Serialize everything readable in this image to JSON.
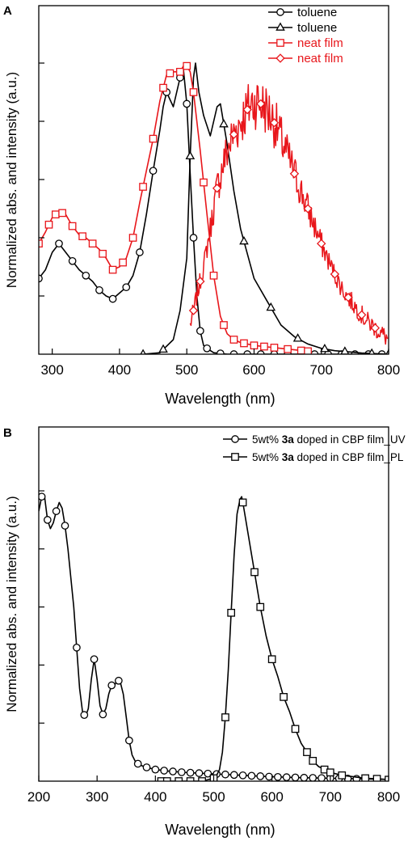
{
  "chart_data": [
    {
      "panel_label": "A",
      "type": "line",
      "xlabel": "Wavelength (nm)",
      "ylabel": "Normalized abs. and intensity (a.u.)",
      "xlim": [
        280,
        800
      ],
      "ylim": [
        0,
        1
      ],
      "xticks": [
        300,
        400,
        500,
        600,
        700,
        800
      ],
      "y_tick_values": [
        0.2,
        0.4,
        0.6,
        0.8,
        1.0
      ],
      "y_tick_labels_shown": false,
      "legend_position": "top-right",
      "series": [
        {
          "name": "toluene",
          "kind": "absorption",
          "color": "#000000",
          "marker": "circle",
          "points": [
            [
              280,
              0.26
            ],
            [
              290,
              0.29
            ],
            [
              300,
              0.35
            ],
            [
              310,
              0.38
            ],
            [
              320,
              0.35
            ],
            [
              330,
              0.32
            ],
            [
              340,
              0.29
            ],
            [
              350,
              0.27
            ],
            [
              360,
              0.25
            ],
            [
              370,
              0.22
            ],
            [
              380,
              0.2
            ],
            [
              390,
              0.19
            ],
            [
              400,
              0.21
            ],
            [
              410,
              0.23
            ],
            [
              420,
              0.27
            ],
            [
              430,
              0.35
            ],
            [
              440,
              0.48
            ],
            [
              450,
              0.63
            ],
            [
              460,
              0.77
            ],
            [
              465,
              0.85
            ],
            [
              470,
              0.9
            ],
            [
              480,
              0.85
            ],
            [
              490,
              0.95
            ],
            [
              495,
              0.98
            ],
            [
              500,
              0.86
            ],
            [
              505,
              0.62
            ],
            [
              510,
              0.4
            ],
            [
              515,
              0.2
            ],
            [
              520,
              0.08
            ],
            [
              525,
              0.03
            ],
            [
              530,
              0.02
            ],
            [
              540,
              0.005
            ],
            [
              560,
              0.0
            ],
            [
              800,
              0.0
            ]
          ],
          "marker_x": [
            280,
            310,
            330,
            350,
            370,
            390,
            410,
            430,
            450,
            470,
            490,
            500,
            510,
            520,
            530,
            550,
            570,
            590,
            610,
            630,
            650,
            670,
            690,
            710,
            730,
            750,
            770,
            790
          ]
        },
        {
          "name": "toluene",
          "kind": "emission",
          "color": "#000000",
          "marker": "triangle",
          "points": [
            [
              435,
              0.0
            ],
            [
              460,
              0.005
            ],
            [
              480,
              0.05
            ],
            [
              490,
              0.15
            ],
            [
              500,
              0.33
            ],
            [
              505,
              0.68
            ],
            [
              510,
              0.95
            ],
            [
              513,
              1.0
            ],
            [
              518,
              0.9
            ],
            [
              525,
              0.82
            ],
            [
              535,
              0.75
            ],
            [
              545,
              0.85
            ],
            [
              550,
              0.86
            ],
            [
              560,
              0.72
            ],
            [
              570,
              0.56
            ],
            [
              580,
              0.43
            ],
            [
              600,
              0.26
            ],
            [
              620,
              0.18
            ],
            [
              640,
              0.1
            ],
            [
              660,
              0.06
            ],
            [
              680,
              0.035
            ],
            [
              700,
              0.02
            ],
            [
              720,
              0.012
            ],
            [
              740,
              0.008
            ],
            [
              760,
              0.004
            ],
            [
              780,
              0.002
            ],
            [
              800,
              0.0
            ]
          ],
          "marker_x": [
            435,
            465,
            505,
            555,
            585,
            625,
            665,
            705,
            735,
            775,
            800
          ]
        },
        {
          "name": "neat film",
          "kind": "absorption",
          "color": "#e8161b",
          "marker": "square",
          "points": [
            [
              280,
              0.38
            ],
            [
              290,
              0.42
            ],
            [
              300,
              0.47
            ],
            [
              310,
              0.49
            ],
            [
              320,
              0.48
            ],
            [
              330,
              0.44
            ],
            [
              340,
              0.41
            ],
            [
              350,
              0.4
            ],
            [
              360,
              0.38
            ],
            [
              370,
              0.36
            ],
            [
              380,
              0.33
            ],
            [
              390,
              0.29
            ],
            [
              400,
              0.3
            ],
            [
              410,
              0.33
            ],
            [
              420,
              0.4
            ],
            [
              430,
              0.52
            ],
            [
              440,
              0.63
            ],
            [
              450,
              0.74
            ],
            [
              460,
              0.87
            ],
            [
              470,
              0.96
            ],
            [
              480,
              0.97
            ],
            [
              490,
              0.97
            ],
            [
              495,
              0.99
            ],
            [
              500,
              0.99
            ],
            [
              505,
              0.97
            ],
            [
              510,
              0.9
            ],
            [
              520,
              0.7
            ],
            [
              530,
              0.48
            ],
            [
              540,
              0.27
            ],
            [
              550,
              0.13
            ],
            [
              560,
              0.07
            ],
            [
              570,
              0.05
            ],
            [
              580,
              0.04
            ],
            [
              600,
              0.03
            ],
            [
              620,
              0.025
            ],
            [
              640,
              0.02
            ],
            [
              660,
              0.015
            ],
            [
              680,
              0.01
            ]
          ],
          "marker_x": [
            280,
            295,
            305,
            315,
            330,
            345,
            360,
            375,
            390,
            405,
            420,
            435,
            450,
            465,
            475,
            490,
            500,
            510,
            525,
            540,
            555,
            570,
            585,
            600,
            615,
            630,
            650,
            670,
            680
          ]
        },
        {
          "name": "neat film",
          "kind": "emission",
          "color": "#e8161b",
          "marker": "diamond",
          "noisy": true,
          "points": [
            [
              505,
              0.1
            ],
            [
              515,
              0.2
            ],
            [
              525,
              0.3
            ],
            [
              535,
              0.43
            ],
            [
              545,
              0.57
            ],
            [
              555,
              0.66
            ],
            [
              565,
              0.73
            ],
            [
              575,
              0.78
            ],
            [
              585,
              0.82
            ],
            [
              595,
              0.86
            ],
            [
              605,
              0.87
            ],
            [
              615,
              0.85
            ],
            [
              625,
              0.82
            ],
            [
              635,
              0.77
            ],
            [
              645,
              0.71
            ],
            [
              655,
              0.65
            ],
            [
              665,
              0.59
            ],
            [
              675,
              0.53
            ],
            [
              685,
              0.47
            ],
            [
              695,
              0.41
            ],
            [
              705,
              0.35
            ],
            [
              715,
              0.3
            ],
            [
              725,
              0.25
            ],
            [
              735,
              0.21
            ],
            [
              745,
              0.18
            ],
            [
              755,
              0.15
            ],
            [
              765,
              0.12
            ],
            [
              775,
              0.1
            ],
            [
              785,
              0.08
            ],
            [
              795,
              0.06
            ],
            [
              800,
              0.05
            ]
          ],
          "marker_x": [
            510,
            520,
            545,
            570,
            590,
            610,
            630,
            660,
            680,
            700,
            720,
            740,
            760,
            780
          ]
        }
      ]
    },
    {
      "panel_label": "B",
      "type": "line",
      "xlabel": "Wavelength (nm)",
      "ylabel": "Normalized abs. and intensity (a.u.)",
      "xlim": [
        200,
        800
      ],
      "ylim": [
        0,
        1
      ],
      "xticks": [
        200,
        300,
        400,
        500,
        600,
        700,
        800
      ],
      "y_tick_values": [
        0.2,
        0.4,
        0.6,
        0.8,
        1.0
      ],
      "y_tick_labels_shown": false,
      "legend_position": "top-right",
      "series": [
        {
          "name_parts": [
            "5wt% ",
            "3a",
            " doped in CBP film_UV"
          ],
          "kind": "absorption",
          "color": "#000000",
          "marker": "circle",
          "points": [
            [
              200,
              0.93
            ],
            [
              205,
              0.98
            ],
            [
              210,
              0.98
            ],
            [
              215,
              0.9
            ],
            [
              220,
              0.87
            ],
            [
              225,
              0.89
            ],
            [
              230,
              0.93
            ],
            [
              235,
              0.96
            ],
            [
              240,
              0.94
            ],
            [
              245,
              0.88
            ],
            [
              250,
              0.8
            ],
            [
              255,
              0.7
            ],
            [
              260,
              0.6
            ],
            [
              265,
              0.46
            ],
            [
              270,
              0.32
            ],
            [
              275,
              0.24
            ],
            [
              280,
              0.22
            ],
            [
              285,
              0.25
            ],
            [
              290,
              0.35
            ],
            [
              295,
              0.42
            ],
            [
              300,
              0.35
            ],
            [
              305,
              0.26
            ],
            [
              310,
              0.23
            ],
            [
              315,
              0.25
            ],
            [
              320,
              0.3
            ],
            [
              325,
              0.33
            ],
            [
              330,
              0.33
            ],
            [
              335,
              0.35
            ],
            [
              340,
              0.34
            ],
            [
              345,
              0.3
            ],
            [
              350,
              0.22
            ],
            [
              355,
              0.14
            ],
            [
              360,
              0.09
            ],
            [
              365,
              0.07
            ],
            [
              370,
              0.06
            ],
            [
              380,
              0.05
            ],
            [
              400,
              0.04
            ],
            [
              420,
              0.035
            ],
            [
              450,
              0.03
            ],
            [
              500,
              0.025
            ],
            [
              550,
              0.02
            ],
            [
              600,
              0.015
            ],
            [
              650,
              0.012
            ],
            [
              700,
              0.01
            ],
            [
              750,
              0.008
            ],
            [
              800,
              0.006
            ]
          ],
          "marker_x": [
            205,
            215,
            230,
            245,
            265,
            278,
            295,
            310,
            325,
            337,
            355,
            370,
            385,
            400,
            415,
            430,
            445,
            460,
            475,
            490,
            505,
            520,
            535,
            550,
            565,
            580,
            595,
            610,
            625,
            640,
            655,
            670,
            685,
            700,
            715,
            730,
            745
          ]
        },
        {
          "name_parts": [
            "5wt% ",
            "3a",
            " doped in CBP film_PL"
          ],
          "kind": "emission",
          "color": "#000000",
          "marker": "square",
          "points": [
            [
              410,
              0.0
            ],
            [
              450,
              0.0
            ],
            [
              480,
              0.0
            ],
            [
              500,
              0.01
            ],
            [
              505,
              0.02
            ],
            [
              510,
              0.04
            ],
            [
              515,
              0.1
            ],
            [
              520,
              0.22
            ],
            [
              525,
              0.38
            ],
            [
              530,
              0.58
            ],
            [
              535,
              0.78
            ],
            [
              540,
              0.92
            ],
            [
              545,
              0.97
            ],
            [
              548,
              0.98
            ],
            [
              550,
              0.96
            ],
            [
              555,
              0.9
            ],
            [
              560,
              0.84
            ],
            [
              565,
              0.78
            ],
            [
              570,
              0.72
            ],
            [
              575,
              0.66
            ],
            [
              580,
              0.6
            ],
            [
              585,
              0.55
            ],
            [
              590,
              0.5
            ],
            [
              600,
              0.42
            ],
            [
              610,
              0.36
            ],
            [
              620,
              0.29
            ],
            [
              630,
              0.24
            ],
            [
              640,
              0.18
            ],
            [
              650,
              0.13
            ],
            [
              660,
              0.1
            ],
            [
              670,
              0.07
            ],
            [
              680,
              0.05
            ],
            [
              690,
              0.04
            ],
            [
              700,
              0.03
            ],
            [
              720,
              0.02
            ],
            [
              740,
              0.015
            ],
            [
              760,
              0.01
            ],
            [
              780,
              0.008
            ],
            [
              800,
              0.005
            ]
          ],
          "marker_x": [
            410,
            420,
            440,
            460,
            480,
            500,
            520,
            530,
            550,
            570,
            580,
            600,
            620,
            640,
            660,
            670,
            690,
            700,
            720,
            760,
            780,
            800
          ]
        }
      ]
    }
  ]
}
